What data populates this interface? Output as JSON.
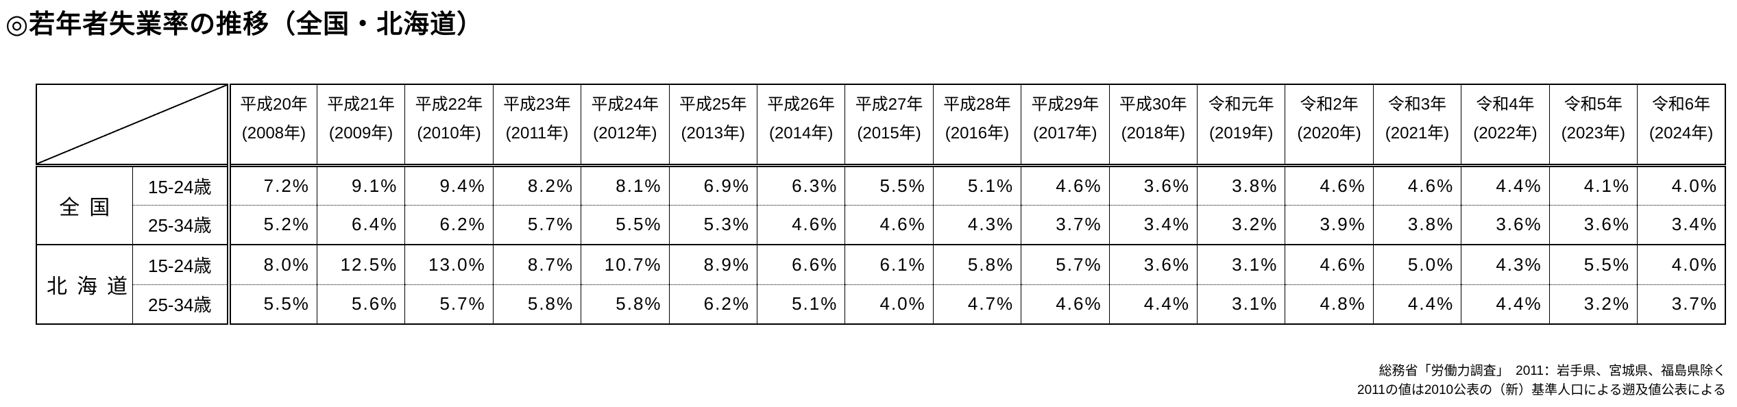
{
  "title": "◎若年者失業率の推移（全国・北海道）",
  "table": {
    "year_headers": [
      {
        "era": "平成20年",
        "year": "(2008年)"
      },
      {
        "era": "平成21年",
        "year": "(2009年)"
      },
      {
        "era": "平成22年",
        "year": "(2010年)"
      },
      {
        "era": "平成23年",
        "year": "(2011年)"
      },
      {
        "era": "平成24年",
        "year": "(2012年)"
      },
      {
        "era": "平成25年",
        "year": "(2013年)"
      },
      {
        "era": "平成26年",
        "year": "(2014年)"
      },
      {
        "era": "平成27年",
        "year": "(2015年)"
      },
      {
        "era": "平成28年",
        "year": "(2016年)"
      },
      {
        "era": "平成29年",
        "year": "(2017年)"
      },
      {
        "era": "平成30年",
        "year": "(2018年)"
      },
      {
        "era": "令和元年",
        "year": "(2019年)"
      },
      {
        "era": "令和2年",
        "year": "(2020年)"
      },
      {
        "era": "令和3年",
        "year": "(2021年)"
      },
      {
        "era": "令和4年",
        "year": "(2022年)"
      },
      {
        "era": "令和5年",
        "year": "(2023年)"
      },
      {
        "era": "令和6年",
        "year": "(2024年)"
      }
    ],
    "groups": [
      {
        "region": "全国",
        "rows": [
          {
            "age": "15-24歳",
            "values": [
              "7.2%",
              "9.1%",
              "9.4%",
              "8.2%",
              "8.1%",
              "6.9%",
              "6.3%",
              "5.5%",
              "5.1%",
              "4.6%",
              "3.6%",
              "3.8%",
              "4.6%",
              "4.6%",
              "4.4%",
              "4.1%",
              "4.0%"
            ]
          },
          {
            "age": "25-34歳",
            "values": [
              "5.2%",
              "6.4%",
              "6.2%",
              "5.7%",
              "5.5%",
              "5.3%",
              "4.6%",
              "4.6%",
              "4.3%",
              "3.7%",
              "3.4%",
              "3.2%",
              "3.9%",
              "3.8%",
              "3.6%",
              "3.6%",
              "3.4%"
            ]
          }
        ]
      },
      {
        "region": "北海道",
        "rows": [
          {
            "age": "15-24歳",
            "values": [
              "8.0%",
              "12.5%",
              "13.0%",
              "8.7%",
              "10.7%",
              "8.9%",
              "6.6%",
              "6.1%",
              "5.8%",
              "5.7%",
              "3.6%",
              "3.1%",
              "4.6%",
              "5.0%",
              "4.3%",
              "5.5%",
              "4.0%"
            ]
          },
          {
            "age": "25-34歳",
            "values": [
              "5.5%",
              "5.6%",
              "5.7%",
              "5.8%",
              "5.8%",
              "6.2%",
              "5.1%",
              "4.0%",
              "4.7%",
              "4.6%",
              "4.4%",
              "3.1%",
              "4.8%",
              "4.4%",
              "4.4%",
              "3.2%",
              "3.7%"
            ]
          }
        ]
      }
    ]
  },
  "footnotes": [
    "総務省「労働力調査」　2011：岩手県、宮城県、福島県除く",
    "2011の値は2010公表の（新）基準人口による遡及値公表による"
  ],
  "chart_data": {
    "type": "table",
    "title": "若年者失業率の推移（全国・北海道）",
    "unit": "%",
    "categories": [
      2008,
      2009,
      2010,
      2011,
      2012,
      2013,
      2014,
      2015,
      2016,
      2017,
      2018,
      2019,
      2020,
      2021,
      2022,
      2023,
      2024
    ],
    "series": [
      {
        "name": "全国 15-24歳",
        "values": [
          7.2,
          9.1,
          9.4,
          8.2,
          8.1,
          6.9,
          6.3,
          5.5,
          5.1,
          4.6,
          3.6,
          3.8,
          4.6,
          4.6,
          4.4,
          4.1,
          4.0
        ]
      },
      {
        "name": "全国 25-34歳",
        "values": [
          5.2,
          6.4,
          6.2,
          5.7,
          5.5,
          5.3,
          4.6,
          4.6,
          4.3,
          3.7,
          3.4,
          3.2,
          3.9,
          3.8,
          3.6,
          3.6,
          3.4
        ]
      },
      {
        "name": "北海道 15-24歳",
        "values": [
          8.0,
          12.5,
          13.0,
          8.7,
          10.7,
          8.9,
          6.6,
          6.1,
          5.8,
          5.7,
          3.6,
          3.1,
          4.6,
          5.0,
          4.3,
          5.5,
          4.0
        ]
      },
      {
        "name": "北海道 25-34歳",
        "values": [
          5.5,
          5.6,
          5.7,
          5.8,
          5.8,
          6.2,
          5.1,
          4.0,
          4.7,
          4.6,
          4.4,
          3.1,
          4.8,
          4.4,
          4.4,
          3.2,
          3.7
        ]
      }
    ]
  }
}
